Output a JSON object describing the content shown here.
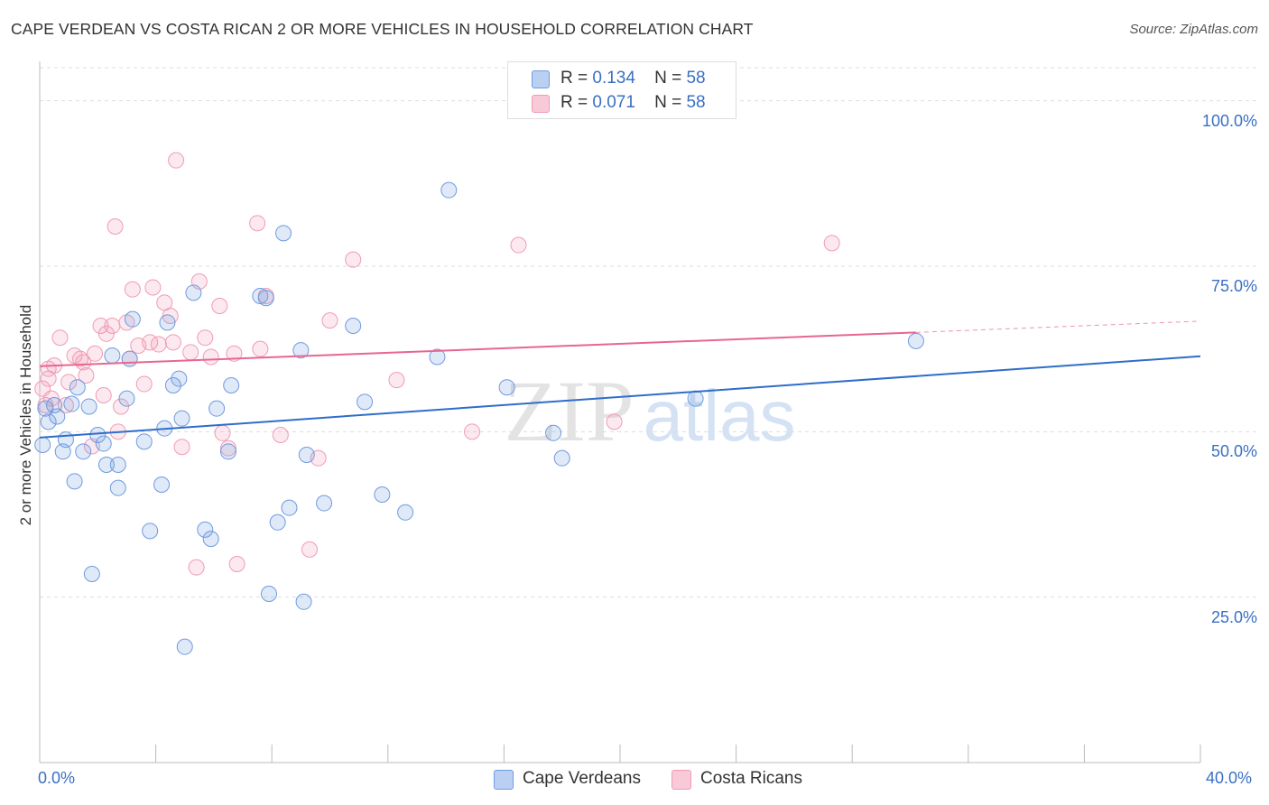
{
  "title": "CAPE VERDEAN VS COSTA RICAN 2 OR MORE VEHICLES IN HOUSEHOLD CORRELATION CHART",
  "source": "Source: ZipAtlas.com",
  "watermark": "ZIPatlas",
  "legend": {
    "r_label": "R =",
    "n_label": "N =",
    "rows": [
      {
        "r": "0.134",
        "n": "58"
      },
      {
        "r": "0.071",
        "n": "58"
      }
    ]
  },
  "chart_data": {
    "type": "scatter",
    "xlabel": "",
    "ylabel": "2 or more Vehicles in Household",
    "xlim": [
      0,
      40
    ],
    "ylim": [
      0,
      105
    ],
    "x_tick_labels": [
      "0.0%",
      "40.0%"
    ],
    "y_tick_values": [
      25,
      50,
      75,
      100
    ],
    "y_tick_labels": [
      "25.0%",
      "50.0%",
      "75.0%",
      "100.0%"
    ],
    "legend_placement": "top-center",
    "colors": {
      "cape_verdeans": "#6f9be0",
      "costa_ricans": "#f09bb5",
      "line_blue": "#2f6dc9",
      "line_pink": "#e8668f"
    },
    "series": [
      {
        "name": "Cape Verdeans",
        "trend": {
          "x": [
            0,
            40
          ],
          "y": [
            49.1,
            61.4
          ],
          "dashed_from": null
        },
        "points": [
          [
            0.1,
            48.0
          ],
          [
            0.2,
            53.5
          ],
          [
            0.3,
            51.5
          ],
          [
            0.5,
            54.0
          ],
          [
            0.6,
            52.3
          ],
          [
            0.8,
            47.0
          ],
          [
            0.9,
            48.8
          ],
          [
            1.1,
            54.2
          ],
          [
            1.3,
            56.7
          ],
          [
            1.5,
            47.0
          ],
          [
            1.7,
            53.8
          ],
          [
            1.8,
            28.5
          ],
          [
            2.0,
            49.5
          ],
          [
            2.2,
            48.2
          ],
          [
            2.3,
            45.0
          ],
          [
            2.5,
            61.5
          ],
          [
            2.7,
            41.5
          ],
          [
            2.7,
            45.0
          ],
          [
            3.0,
            55.0
          ],
          [
            3.1,
            61.0
          ],
          [
            3.2,
            67.0
          ],
          [
            3.6,
            48.5
          ],
          [
            3.8,
            35.0
          ],
          [
            4.2,
            42.0
          ],
          [
            4.3,
            50.5
          ],
          [
            4.4,
            66.5
          ],
          [
            4.6,
            57.0
          ],
          [
            4.8,
            58.0
          ],
          [
            4.9,
            52.0
          ],
          [
            5.0,
            17.5
          ],
          [
            5.3,
            71.0
          ],
          [
            5.7,
            35.2
          ],
          [
            5.9,
            33.8
          ],
          [
            6.1,
            53.5
          ],
          [
            6.6,
            57.0
          ],
          [
            7.6,
            70.5
          ],
          [
            7.8,
            70.2
          ],
          [
            7.9,
            25.5
          ],
          [
            8.2,
            36.3
          ],
          [
            8.4,
            80.0
          ],
          [
            8.6,
            38.5
          ],
          [
            9.0,
            62.3
          ],
          [
            9.1,
            24.3
          ],
          [
            9.2,
            46.5
          ],
          [
            9.8,
            39.2
          ],
          [
            10.8,
            66.0
          ],
          [
            11.2,
            54.5
          ],
          [
            11.8,
            40.5
          ],
          [
            12.6,
            37.8
          ],
          [
            13.7,
            61.3
          ],
          [
            14.1,
            86.5
          ],
          [
            16.1,
            56.7
          ],
          [
            17.7,
            49.8
          ],
          [
            18.0,
            46.0
          ],
          [
            22.6,
            55.0
          ],
          [
            30.2,
            63.7
          ],
          [
            6.5,
            47.0
          ],
          [
            1.2,
            42.5
          ]
        ]
      },
      {
        "name": "Costa Ricans",
        "trend": {
          "x": [
            0,
            30.2
          ],
          "y": [
            59.9,
            65.0
          ],
          "dashed_to": [
            40,
            66.7
          ]
        },
        "points": [
          [
            0.1,
            56.5
          ],
          [
            0.2,
            54.0
          ],
          [
            0.3,
            58.0
          ],
          [
            0.5,
            60.0
          ],
          [
            0.7,
            64.2
          ],
          [
            0.9,
            54.0
          ],
          [
            1.0,
            57.5
          ],
          [
            1.2,
            61.5
          ],
          [
            1.4,
            61.0
          ],
          [
            1.6,
            58.5
          ],
          [
            1.8,
            47.8
          ],
          [
            1.9,
            61.8
          ],
          [
            2.1,
            66.0
          ],
          [
            2.3,
            64.8
          ],
          [
            2.5,
            66.0
          ],
          [
            2.6,
            81.0
          ],
          [
            2.7,
            50.0
          ],
          [
            2.8,
            53.8
          ],
          [
            3.0,
            66.5
          ],
          [
            3.1,
            61.0
          ],
          [
            3.2,
            71.5
          ],
          [
            3.4,
            63.0
          ],
          [
            3.6,
            57.2
          ],
          [
            3.8,
            63.5
          ],
          [
            3.9,
            71.8
          ],
          [
            4.1,
            63.2
          ],
          [
            4.3,
            69.5
          ],
          [
            4.5,
            67.5
          ],
          [
            4.6,
            63.5
          ],
          [
            4.7,
            91.0
          ],
          [
            4.9,
            47.7
          ],
          [
            5.2,
            62.0
          ],
          [
            5.4,
            29.5
          ],
          [
            5.5,
            72.7
          ],
          [
            5.7,
            64.2
          ],
          [
            5.9,
            61.3
          ],
          [
            6.2,
            69.0
          ],
          [
            6.3,
            49.8
          ],
          [
            6.5,
            47.5
          ],
          [
            6.7,
            61.8
          ],
          [
            6.8,
            30.0
          ],
          [
            7.5,
            81.5
          ],
          [
            7.6,
            62.5
          ],
          [
            7.8,
            70.5
          ],
          [
            8.3,
            49.5
          ],
          [
            9.3,
            32.2
          ],
          [
            9.6,
            46.0
          ],
          [
            10.0,
            66.8
          ],
          [
            10.8,
            76.0
          ],
          [
            12.3,
            57.8
          ],
          [
            14.9,
            50.0
          ],
          [
            16.5,
            78.2
          ],
          [
            19.8,
            51.5
          ],
          [
            27.3,
            78.5
          ],
          [
            0.4,
            55.0
          ],
          [
            1.5,
            60.5
          ],
          [
            0.3,
            59.5
          ],
          [
            2.2,
            55.5
          ]
        ]
      }
    ]
  },
  "bottom_legend": [
    "Cape Verdeans",
    "Costa Ricans"
  ]
}
